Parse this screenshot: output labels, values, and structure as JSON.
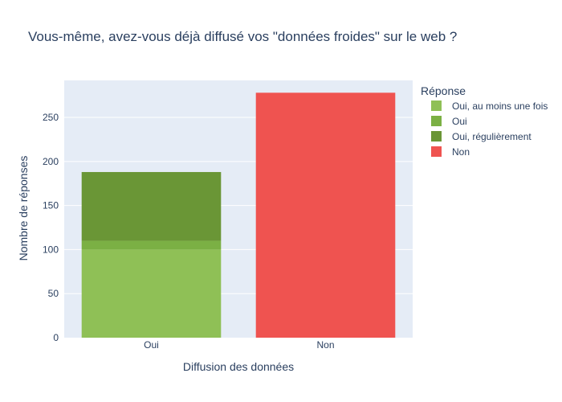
{
  "chart_data": {
    "type": "bar",
    "barmode": "stack",
    "title": "Vous-même, avez-vous déjà diffusé vos \"données froides\" sur le web ?",
    "xlabel": "Diffusion des données",
    "ylabel": "Nombre de réponses",
    "categories": [
      "Oui",
      "Non"
    ],
    "ylim": [
      0,
      292
    ],
    "yticks": [
      0,
      50,
      100,
      150,
      200,
      250
    ],
    "grid": true,
    "legend_title": "Réponse",
    "legend_position": "right",
    "background": "#e5ecf6",
    "series": [
      {
        "name": "Oui, au moins une fois",
        "color": "#8fc056",
        "values": [
          100,
          0
        ]
      },
      {
        "name": "Oui",
        "color": "#7bb044",
        "values": [
          10,
          0
        ]
      },
      {
        "name": "Oui, régulièrement",
        "color": "#6a9636",
        "values": [
          78,
          0
        ]
      },
      {
        "name": "Non",
        "color": "#ef5350",
        "values": [
          0,
          278
        ]
      }
    ]
  }
}
